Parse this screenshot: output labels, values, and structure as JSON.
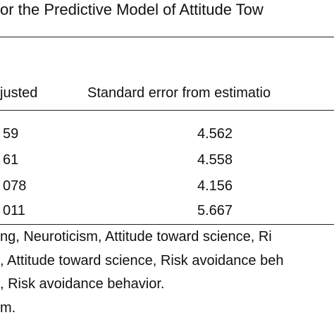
{
  "header": {
    "title": "or the Predictive Model of Attitude Tow"
  },
  "table": {
    "columns": [
      "justed",
      "Standard error from estimatio"
    ],
    "rows": [
      [
        "59",
        "4.562"
      ],
      [
        "61",
        "4.558"
      ],
      [
        "078",
        "4.156"
      ],
      [
        "011",
        "5.667"
      ]
    ]
  },
  "notes": [
    "ng, Neuroticism, Attitude toward science, Ri",
    ", Attitude toward science, Risk avoidance beh",
    ", Risk avoidance behavior.",
    "m."
  ]
}
